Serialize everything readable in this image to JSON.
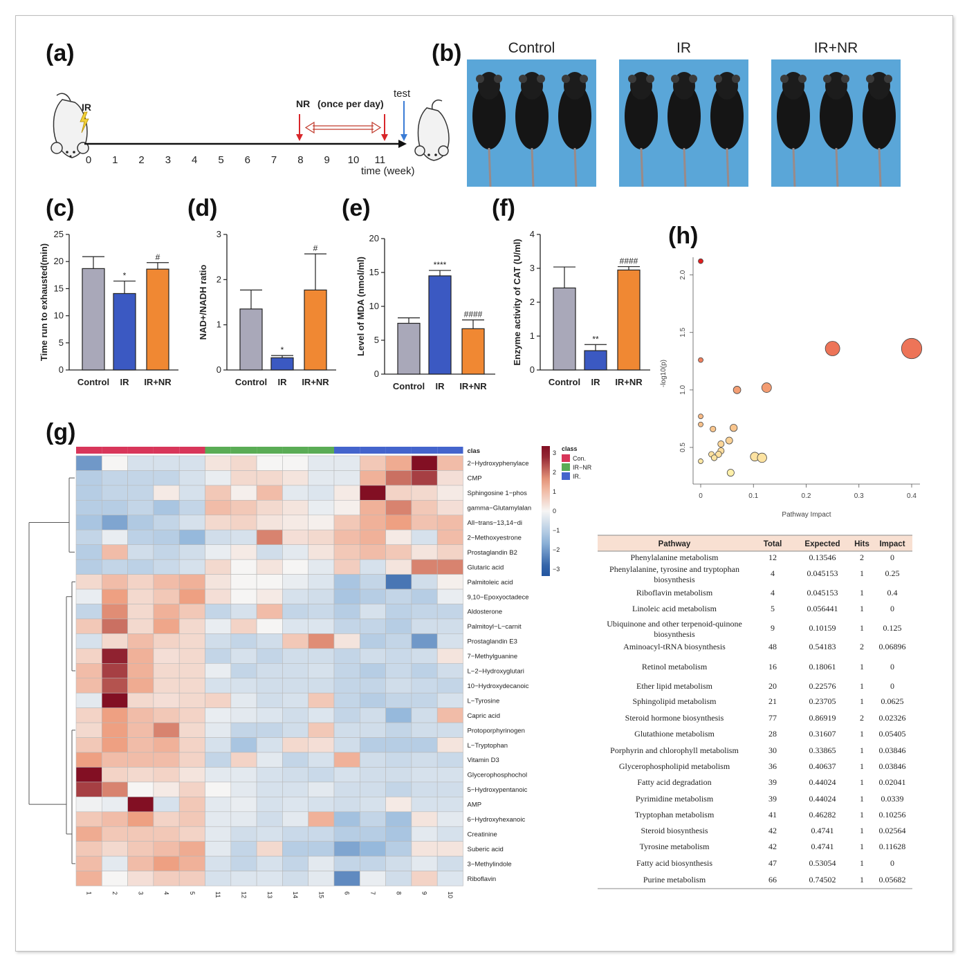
{
  "panels": {
    "a": "(a)",
    "b": "(b)",
    "c": "(c)",
    "d": "(d)",
    "e": "(e)",
    "f": "(f)",
    "g": "(g)",
    "h": "(h)"
  },
  "timeline": {
    "ir_label": "IR",
    "nr_label": "NR",
    "nr_note": "(once per day)",
    "test_label": "test",
    "axis_title": "time (week)",
    "ticks": [
      "0",
      "1",
      "2",
      "3",
      "4",
      "5",
      "6",
      "7",
      "8",
      "9",
      "10",
      "11"
    ]
  },
  "photos": {
    "labels": [
      "Control",
      "IR",
      "IR+NR"
    ],
    "background_color": "#5aa6d8"
  },
  "colors": {
    "control": "#a9a8b9",
    "ir": "#3b59c2",
    "irnr": "#f08833"
  },
  "chart_data": [
    {
      "id": "c",
      "type": "bar",
      "categories": [
        "Control",
        "IR",
        "IR+NR"
      ],
      "values": [
        18.7,
        14.1,
        18.6
      ],
      "errors": [
        2.2,
        2.3,
        1.2
      ],
      "significance": [
        "",
        "*",
        "#"
      ],
      "ylabel": "Time run to exhausted(min)",
      "ylim": [
        0,
        25
      ],
      "yticks": [
        "0",
        "5",
        "10",
        "15",
        "20",
        "25"
      ]
    },
    {
      "id": "d",
      "type": "bar",
      "categories": [
        "Control",
        "IR",
        "IR+NR"
      ],
      "values": [
        1.35,
        0.27,
        1.77
      ],
      "errors": [
        0.42,
        0.05,
        0.8
      ],
      "significance": [
        "",
        "*",
        "#"
      ],
      "ylabel": "NAD+/NADH ratio",
      "ylim": [
        0,
        3
      ],
      "yticks": [
        "0",
        "1",
        "2",
        "3"
      ]
    },
    {
      "id": "e",
      "type": "bar",
      "categories": [
        "Control",
        "IR",
        "IR+NR"
      ],
      "values": [
        7.5,
        14.5,
        6.7
      ],
      "errors": [
        0.8,
        0.8,
        1.3
      ],
      "significance": [
        "",
        "****",
        "####"
      ],
      "ylabel": "Level of MDA (nmol/ml)",
      "ylim": [
        0,
        20
      ],
      "yticks": [
        "0",
        "5",
        "10",
        "15",
        "20"
      ]
    },
    {
      "id": "f",
      "type": "bar",
      "categories": [
        "Control",
        "IR",
        "IR+NR"
      ],
      "values": [
        2.42,
        0.57,
        2.95
      ],
      "errors": [
        0.62,
        0.18,
        0.1
      ],
      "significance": [
        "",
        "**",
        "####"
      ],
      "ylabel": "Enzyme activity of CAT (U/ml)",
      "ylim": [
        0,
        4
      ],
      "yticks": [
        "0",
        "1",
        "2",
        "3",
        "4"
      ]
    },
    {
      "id": "g",
      "type": "heatmap",
      "columns": [
        "1",
        "2",
        "3",
        "4",
        "5",
        "11",
        "12",
        "13",
        "14",
        "15",
        "6",
        "7",
        "8",
        "9",
        "10"
      ],
      "column_classes": [
        "Con.",
        "Con.",
        "Con.",
        "Con.",
        "Con.",
        "IR-NR",
        "IR-NR",
        "IR-NR",
        "IR-NR",
        "IR-NR",
        "IR.",
        "IR.",
        "IR.",
        "IR.",
        "IR."
      ],
      "class_header": "clas",
      "legend_title": "class",
      "legend_classes": [
        {
          "name": "Con.",
          "color": "#d8365a"
        },
        {
          "name": "IR−NR",
          "color": "#5aac55"
        },
        {
          "name": "IR.",
          "color": "#4464cc"
        }
      ],
      "scale_ticks": [
        "3",
        "2",
        "1",
        "0",
        "−1",
        "−2",
        "−3"
      ],
      "rows": [
        {
          "name": "2−Hydroxyphenylace",
          "values": [
            -2,
            0,
            -0.5,
            -0.5,
            -0.5,
            0.3,
            0.5,
            0,
            0,
            -0.3,
            -0.3,
            0.8,
            1.3,
            3,
            1
          ]
        },
        {
          "name": "CMP",
          "values": [
            -1,
            -0.8,
            -0.8,
            -0.8,
            -0.5,
            -0.2,
            0.5,
            0.5,
            0.3,
            -0.3,
            -0.3,
            1.2,
            2,
            2.5,
            0.4
          ]
        },
        {
          "name": "Sphingosine 1−phos",
          "values": [
            -1,
            -0.8,
            -0.8,
            0.2,
            -0.5,
            0.8,
            0.1,
            1,
            -0.3,
            -0.4,
            0.2,
            3,
            0.6,
            0.5,
            0.2
          ]
        },
        {
          "name": "gamma−Glutamylalan",
          "values": [
            -1,
            -1,
            -0.8,
            -1.2,
            -0.8,
            1,
            0.8,
            0.5,
            0.3,
            -0.2,
            0.1,
            1.2,
            1.8,
            0.8,
            0.4
          ]
        },
        {
          "name": "All−trans−13,14−di",
          "values": [
            -1.2,
            -1.8,
            -1.1,
            -0.8,
            -0.5,
            0.5,
            0.6,
            0.3,
            0.2,
            0.1,
            0.8,
            1.2,
            1.5,
            0.9,
            1
          ]
        },
        {
          "name": "2−Methoxyestrone",
          "values": [
            -0.8,
            -0.2,
            -0.9,
            -1,
            -1.5,
            -0.6,
            -0.5,
            1.8,
            0.4,
            0.5,
            1,
            1.2,
            0.2,
            -0.5,
            1
          ]
        },
        {
          "name": "Prostaglandin B2",
          "values": [
            -1,
            1,
            -0.6,
            -0.8,
            -0.6,
            -0.2,
            0.2,
            -0.6,
            -0.3,
            0.3,
            0.8,
            1,
            0.8,
            0.3,
            0.6
          ]
        },
        {
          "name": "Glutaric acid",
          "values": [
            -1,
            -0.8,
            -0.9,
            -0.7,
            -0.5,
            0.5,
            0,
            0.3,
            0,
            -0.3,
            0.7,
            -0.5,
            0.3,
            1.8,
            1.8
          ]
        },
        {
          "name": "Palmitoleic acid",
          "values": [
            0.5,
            1,
            0.6,
            1,
            1.2,
            0.3,
            0,
            0,
            -0.2,
            -0.4,
            -1.2,
            -0.8,
            -2.5,
            -0.6,
            0.1
          ]
        },
        {
          "name": "9,10−Epoxyoctadece",
          "values": [
            -0.2,
            1.5,
            0.5,
            0.8,
            1.5,
            0.4,
            0,
            0.2,
            -0.5,
            -0.6,
            -1.2,
            -1,
            -0.8,
            -1,
            -0.2
          ]
        },
        {
          "name": "Aldosterone",
          "values": [
            -0.8,
            1.7,
            0.5,
            1.2,
            0.8,
            -0.8,
            -0.5,
            1,
            -0.8,
            -0.7,
            -1,
            -0.5,
            -0.9,
            -0.8,
            -0.8
          ]
        },
        {
          "name": "Palmitoyl−L−carnit",
          "values": [
            0.8,
            2,
            0.5,
            1.4,
            0.5,
            -0.2,
            0.6,
            0,
            -0.4,
            -0.4,
            -0.8,
            -0.8,
            -1,
            -0.6,
            -0.6
          ]
        },
        {
          "name": "Prostaglandin E3",
          "values": [
            -0.5,
            0.5,
            1,
            0.6,
            0.5,
            -0.6,
            -0.8,
            -0.6,
            0.8,
            1.7,
            0.3,
            -1,
            -0.8,
            -2,
            -0.5
          ]
        },
        {
          "name": "7−Methylguanine",
          "values": [
            0.6,
            2.8,
            1.2,
            0.4,
            0.5,
            -0.8,
            -0.5,
            -0.8,
            -0.6,
            -0.6,
            -0.8,
            -0.6,
            -0.7,
            -0.6,
            0.3
          ]
        },
        {
          "name": "L−2−Hydroxyglutari",
          "values": [
            1,
            2.5,
            1.2,
            0.5,
            0.5,
            -0.2,
            -0.8,
            -0.6,
            -0.6,
            -0.5,
            -0.8,
            -1,
            -0.7,
            -0.9,
            -0.6
          ]
        },
        {
          "name": "10−Hydroxydecanoic",
          "values": [
            1,
            2.3,
            1.3,
            0.5,
            0.5,
            -0.5,
            -0.5,
            -0.6,
            -0.6,
            -0.6,
            -0.8,
            -0.8,
            -0.6,
            -0.7,
            -0.8
          ]
        },
        {
          "name": "L−Tyrosine",
          "values": [
            -0.3,
            3,
            0.5,
            0.4,
            0.5,
            0.6,
            -0.3,
            -0.6,
            -0.5,
            0.8,
            -0.8,
            -1,
            -0.8,
            -0.8,
            -0.5
          ]
        },
        {
          "name": "Capric acid",
          "values": [
            0.6,
            1.5,
            1,
            0.8,
            0.6,
            -0.2,
            -0.3,
            -0.4,
            -0.6,
            -0.4,
            -0.8,
            -0.6,
            -1.5,
            -0.6,
            1
          ]
        },
        {
          "name": "Protoporphyrinogen",
          "values": [
            0.5,
            1.5,
            1,
            1.8,
            0.5,
            -0.3,
            -0.8,
            -0.8,
            -0.6,
            0.8,
            -0.6,
            -0.6,
            -0.8,
            -0.6,
            -0.6
          ]
        },
        {
          "name": "L−Tryptophan",
          "values": [
            0.8,
            1.5,
            1,
            1.2,
            0.6,
            -0.5,
            -1.2,
            -0.5,
            0.5,
            0.4,
            -0.6,
            -1,
            -1,
            -1,
            0.3
          ]
        },
        {
          "name": "Vitamin D3",
          "values": [
            1.5,
            1,
            1,
            1,
            0.6,
            -0.8,
            0.6,
            -0.3,
            -0.8,
            -0.5,
            1.2,
            -0.6,
            -0.7,
            -0.6,
            -0.7
          ]
        },
        {
          "name": "Glycerophosphochol",
          "values": [
            3.2,
            0.6,
            0.5,
            0.6,
            0.3,
            -0.3,
            -0.3,
            -0.5,
            -0.6,
            -0.7,
            -0.5,
            -0.6,
            -0.6,
            -0.5,
            -0.5
          ]
        },
        {
          "name": "5−Hydroxypentanoic",
          "values": [
            2.5,
            1.8,
            0,
            0.2,
            0.6,
            0,
            -0.3,
            -0.5,
            -0.5,
            -0.3,
            -0.6,
            -0.6,
            -0.8,
            -0.6,
            -0.6
          ]
        },
        {
          "name": "AMP",
          "values": [
            -0.1,
            -0.2,
            3.2,
            -0.5,
            0.8,
            -0.3,
            -0.2,
            -0.5,
            -0.4,
            -0.5,
            -0.6,
            -0.5,
            0.2,
            -0.5,
            -0.5
          ]
        },
        {
          "name": "6−Hydroxyhexanoic",
          "values": [
            0.8,
            1,
            1.5,
            0.6,
            0.8,
            -0.3,
            -0.3,
            -0.6,
            -0.3,
            1.2,
            -1.3,
            -0.8,
            -1.3,
            0.3,
            -0.3
          ]
        },
        {
          "name": "Creatinine",
          "values": [
            1.3,
            0.8,
            0.8,
            0.8,
            0.6,
            -0.3,
            -0.6,
            -0.5,
            -0.7,
            -0.7,
            -1,
            -1,
            -1.2,
            -0.3,
            -0.5
          ]
        },
        {
          "name": "Suberic acid",
          "values": [
            0.8,
            0.5,
            0.8,
            1,
            1.3,
            -0.3,
            -0.8,
            0.5,
            -1,
            -1,
            -1.8,
            -1.5,
            -1,
            0.3,
            0.3
          ]
        },
        {
          "name": "3−Methylindole",
          "values": [
            1,
            -0.3,
            1,
            1.5,
            1.2,
            -0.5,
            -0.8,
            -0.5,
            -0.8,
            -0.3,
            -0.8,
            -0.8,
            -0.6,
            -0.3,
            -0.6
          ]
        },
        {
          "name": "Riboflavin",
          "values": [
            1.2,
            0,
            0.4,
            0.7,
            0.7,
            -0.5,
            -0.4,
            -0.4,
            -0.6,
            -0.3,
            -2.2,
            -0.2,
            -0.6,
            0.6,
            -0.4
          ]
        }
      ]
    },
    {
      "id": "h",
      "type": "scatter",
      "xlabel": "Pathway Impact",
      "ylabel": "-log10(p)",
      "xlim": [
        0,
        0.4
      ],
      "ylim": [
        0.28,
        2.2
      ],
      "xticks": [
        "0",
        "0.1",
        "0.2",
        "0.3",
        "0.4"
      ],
      "yticks": [
        "0.5",
        "1.0",
        "1.5",
        "2.0"
      ],
      "points": [
        {
          "x": 0,
          "y": 2.12
        },
        {
          "x": 0.25,
          "y": 1.36
        },
        {
          "x": 0.4,
          "y": 1.36
        },
        {
          "x": 0,
          "y": 1.26
        },
        {
          "x": 0.125,
          "y": 1.02
        },
        {
          "x": 0.06896,
          "y": 1.0
        },
        {
          "x": 0,
          "y": 0.77
        },
        {
          "x": 0,
          "y": 0.7
        },
        {
          "x": 0.0625,
          "y": 0.67
        },
        {
          "x": 0.02326,
          "y": 0.66
        },
        {
          "x": 0.05405,
          "y": 0.56
        },
        {
          "x": 0.03846,
          "y": 0.53
        },
        {
          "x": 0.03846,
          "y": 0.47
        },
        {
          "x": 0.02041,
          "y": 0.44
        },
        {
          "x": 0.0339,
          "y": 0.44
        },
        {
          "x": 0.10256,
          "y": 0.42
        },
        {
          "x": 0.02564,
          "y": 0.41
        },
        {
          "x": 0.11628,
          "y": 0.41
        },
        {
          "x": 0,
          "y": 0.38
        },
        {
          "x": 0.05682,
          "y": 0.28
        }
      ]
    }
  ],
  "pathway_table": {
    "headers": [
      "Pathway",
      "Total",
      "Expected",
      "Hits",
      "Impact"
    ],
    "rows": [
      [
        "Phenylalanine metabolism",
        "12",
        "0.13546",
        "2",
        "0"
      ],
      [
        "Phenylalanine, tyrosine and tryptophan biosynthesis",
        "4",
        "0.045153",
        "1",
        "0.25"
      ],
      [
        "Riboflavin metabolism",
        "4",
        "0.045153",
        "1",
        "0.4"
      ],
      [
        "Linoleic acid metabolism",
        "5",
        "0.056441",
        "1",
        "0"
      ],
      [
        "Ubiquinone and other terpenoid-quinone biosynthesis",
        "9",
        "0.10159",
        "1",
        "0.125"
      ],
      [
        "Aminoacyl-tRNA biosynthesis",
        "48",
        "0.54183",
        "2",
        "0.06896"
      ],
      [
        "Retinol metabolism",
        "16",
        "0.18061",
        "1",
        "0"
      ],
      [
        "Ether lipid metabolism",
        "20",
        "0.22576",
        "1",
        "0"
      ],
      [
        "Sphingolipid metabolism",
        "21",
        "0.23705",
        "1",
        "0.0625"
      ],
      [
        "Steroid hormone biosynthesis",
        "77",
        "0.86919",
        "2",
        "0.02326"
      ],
      [
        "Glutathione metabolism",
        "28",
        "0.31607",
        "1",
        "0.05405"
      ],
      [
        "Porphyrin and chlorophyll metabolism",
        "30",
        "0.33865",
        "1",
        "0.03846"
      ],
      [
        "Glycerophospholipid metabolism",
        "36",
        "0.40637",
        "1",
        "0.03846"
      ],
      [
        "Fatty acid degradation",
        "39",
        "0.44024",
        "1",
        "0.02041"
      ],
      [
        "Pyrimidine metabolism",
        "39",
        "0.44024",
        "1",
        "0.0339"
      ],
      [
        "Tryptophan metabolism",
        "41",
        "0.46282",
        "1",
        "0.10256"
      ],
      [
        "Steroid biosynthesis",
        "42",
        "0.4741",
        "1",
        "0.02564"
      ],
      [
        "Tyrosine metabolism",
        "42",
        "0.4741",
        "1",
        "0.11628"
      ],
      [
        "Fatty acid biosynthesis",
        "47",
        "0.53054",
        "1",
        "0"
      ],
      [
        "Purine metabolism",
        "66",
        "0.74502",
        "1",
        "0.05682"
      ]
    ]
  }
}
